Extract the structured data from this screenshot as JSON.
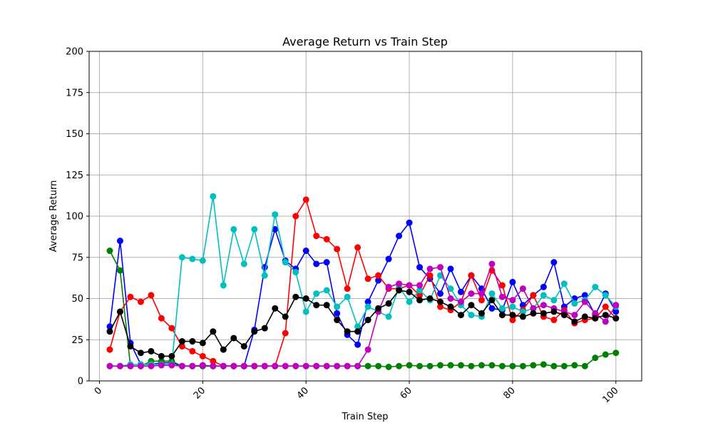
{
  "chart_data": {
    "type": "line",
    "title": "Average Return vs Train Step",
    "xlabel": "Train Step",
    "ylabel": "Average Return",
    "xlim": [
      -2,
      105
    ],
    "ylim": [
      0,
      200
    ],
    "xticks": [
      0,
      20,
      40,
      60,
      80,
      100
    ],
    "yticks": [
      0,
      25,
      50,
      75,
      100,
      125,
      150,
      175,
      200
    ],
    "xtick_rotation": 45,
    "grid": true,
    "x": [
      2,
      4,
      6,
      8,
      10,
      12,
      14,
      16,
      18,
      20,
      22,
      24,
      26,
      28,
      30,
      32,
      34,
      36,
      38,
      40,
      42,
      44,
      46,
      48,
      50,
      52,
      54,
      56,
      58,
      60,
      62,
      64,
      66,
      68,
      70,
      72,
      74,
      76,
      78,
      80,
      82,
      84,
      86,
      88,
      90,
      92,
      94,
      96,
      98,
      100
    ],
    "series": [
      {
        "color": "#0000ff",
        "values": [
          33,
          85,
          23,
          10,
          10,
          11,
          11,
          9,
          9,
          9,
          9,
          9,
          9,
          9,
          31,
          69,
          92,
          73,
          68,
          79,
          71,
          72,
          41,
          28,
          22,
          48,
          61,
          74,
          88,
          96,
          69,
          62,
          53,
          68,
          54,
          64,
          56,
          44,
          43,
          60,
          46,
          52,
          57,
          72,
          45,
          50,
          52,
          40,
          53,
          42
        ]
      },
      {
        "color": "#008000",
        "values": [
          79,
          67,
          9,
          9,
          12,
          12,
          12,
          9,
          9,
          9,
          9,
          9,
          9,
          9,
          9,
          9,
          9,
          9,
          9,
          9,
          9,
          9,
          9,
          9,
          9,
          9,
          9,
          8.5,
          9,
          9.5,
          9,
          9,
          9.5,
          9.5,
          9.5,
          9,
          9.5,
          9.5,
          9,
          9,
          9,
          9.5,
          10,
          9,
          9,
          9.5,
          9,
          14,
          16,
          17
        ]
      },
      {
        "color": "#ff0000",
        "values": [
          19,
          42,
          51,
          48,
          52,
          38,
          32,
          21,
          18,
          15,
          12,
          9,
          9,
          9,
          9,
          9,
          9,
          29,
          100,
          110,
          88,
          86,
          80,
          56,
          81,
          62,
          64,
          56,
          56,
          58,
          52,
          64,
          45,
          43,
          48,
          64,
          49,
          67,
          58,
          37,
          43,
          52,
          39,
          37,
          43,
          35,
          37,
          38,
          45,
          38
        ]
      },
      {
        "color": "#00bfbf",
        "values": [
          9,
          9,
          10,
          10,
          10,
          10,
          10,
          75,
          74,
          73,
          112,
          58,
          92,
          71,
          92,
          64,
          101,
          72,
          66,
          42,
          53,
          55,
          45,
          51,
          33,
          45,
          42,
          39,
          57,
          48,
          55,
          49,
          64,
          56,
          46,
          40,
          39,
          53,
          44,
          45,
          42,
          44,
          52,
          49,
          59,
          47,
          49,
          57,
          52,
          45
        ]
      },
      {
        "color": "#bf00bf",
        "values": [
          9,
          9,
          9,
          9,
          9,
          9.5,
          9.5,
          9,
          9,
          9.5,
          9,
          9,
          9,
          9,
          9,
          9,
          9,
          9,
          9,
          9,
          9,
          9,
          9,
          9,
          9,
          19,
          42,
          57,
          59,
          58,
          58,
          68,
          69,
          50,
          48,
          53,
          53,
          71,
          51,
          49,
          56,
          44,
          46,
          44,
          42,
          40,
          48,
          41,
          36,
          46
        ]
      },
      {
        "color": "#000000",
        "values": [
          30,
          42,
          21,
          17,
          18,
          15,
          15,
          24,
          24,
          23,
          30,
          19,
          26,
          21,
          30,
          32,
          44,
          39,
          51,
          50,
          46,
          46,
          37,
          30,
          30,
          37,
          44,
          47,
          55,
          54,
          49,
          50,
          48,
          45,
          40,
          46,
          41,
          49,
          40,
          40,
          39,
          41,
          41,
          42,
          40,
          36,
          39,
          38,
          40,
          38
        ]
      }
    ]
  }
}
